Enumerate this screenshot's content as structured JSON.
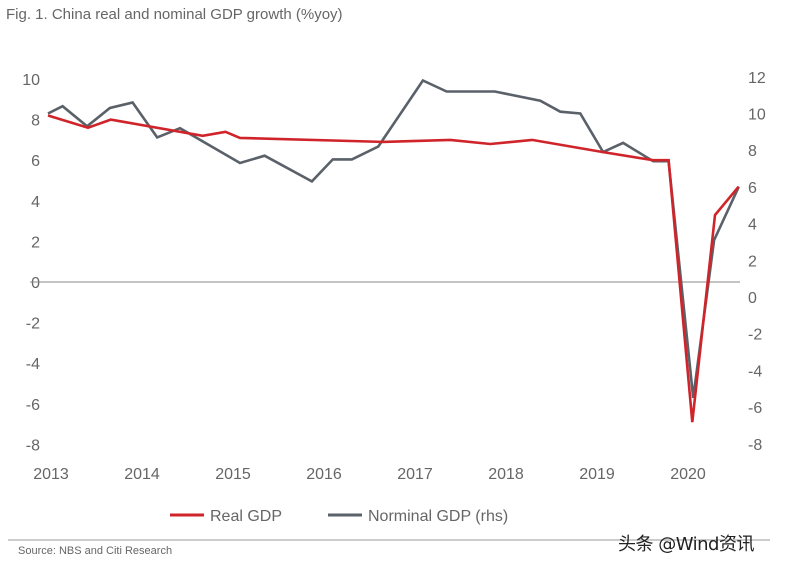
{
  "chart_data": {
    "type": "line",
    "title": "Fig. 1. China real and nominal GDP growth (%yoy)",
    "source": "Source: NBS and Citi Research",
    "watermark": "头条 @Wind资讯",
    "xlabel": "",
    "ylabel": "",
    "x_ticks": [
      "2013",
      "2014",
      "2015",
      "2016",
      "2017",
      "2018",
      "2019",
      "2020"
    ],
    "xlim": [
      2013,
      2020.6
    ],
    "ylim_left": [
      -8,
      10
    ],
    "ylim_right": [
      -8,
      12
    ],
    "y_ticks_left": [
      "10",
      "8",
      "6",
      "4",
      "2",
      "0",
      "-2",
      "-4",
      "-6",
      "-8"
    ],
    "y_ticks_right": [
      "12",
      "10",
      "8",
      "6",
      "4",
      "2",
      "0",
      "-2",
      "-4",
      "-6",
      "-8"
    ],
    "grid": false,
    "zero_line": true,
    "legend_position": "bottom",
    "series": [
      {
        "name": "Real GDP",
        "axis": "left",
        "color": "#d0242b",
        "x": [
          2013.0,
          2013.44,
          2013.69,
          2014.7,
          2014.95,
          2015.11,
          2016.68,
          2017.42,
          2017.86,
          2018.32,
          2019.1,
          2019.65,
          2019.82,
          2020.08,
          2020.33,
          2020.59
        ],
        "values": [
          8.2,
          7.6,
          8.0,
          7.2,
          7.4,
          7.1,
          6.9,
          7.0,
          6.8,
          7.0,
          6.4,
          6.0,
          6.0,
          -6.9,
          3.3,
          4.7
        ]
      },
      {
        "name": "Norminal GDP (rhs)",
        "axis": "right",
        "color": "#5a6169",
        "x": [
          2013.0,
          2013.16,
          2013.43,
          2013.68,
          2013.93,
          2014.2,
          2014.45,
          2015.11,
          2015.38,
          2015.9,
          2016.13,
          2016.34,
          2016.63,
          2017.12,
          2017.38,
          2017.91,
          2018.41,
          2018.63,
          2018.85,
          2019.1,
          2019.32,
          2019.65,
          2019.82,
          2020.09,
          2020.32,
          2020.59
        ],
        "values": [
          10.0,
          10.4,
          9.3,
          10.3,
          10.6,
          8.7,
          9.2,
          7.3,
          7.7,
          6.3,
          7.5,
          7.5,
          8.2,
          11.8,
          11.2,
          11.2,
          10.7,
          10.1,
          10.0,
          7.9,
          8.4,
          7.4,
          7.4,
          -5.5,
          3.1,
          6.0
        ]
      }
    ]
  }
}
